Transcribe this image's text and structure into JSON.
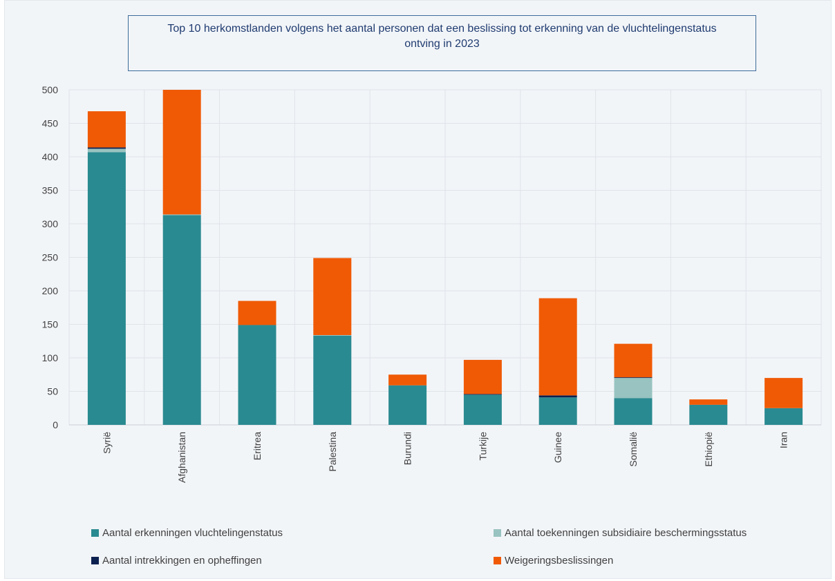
{
  "chart_data": {
    "type": "bar",
    "stacked": true,
    "title_lines": [
      "Top 10 herkomstlanden volgens het aantal personen dat een beslissing tot erkenning van de vluchtelingenstatus",
      "ontving in 2023"
    ],
    "categories": [
      "Syrië",
      "Afghanistan",
      "Eritrea",
      "Palestina",
      "Burundi",
      "Turkije",
      "Guinee",
      "Somalië",
      "Ethiopië",
      "Iran"
    ],
    "ylim": [
      0,
      500
    ],
    "yticks": [
      0,
      50,
      100,
      150,
      200,
      250,
      300,
      350,
      400,
      450,
      500
    ],
    "grid": true,
    "legend_position": "bottom",
    "series": [
      {
        "name": "Aantal erkenningen vluchtelingenstatus",
        "color": "#2a8a91",
        "values": [
          407,
          313,
          149,
          133,
          59,
          45,
          41,
          40,
          30,
          25
        ]
      },
      {
        "name": "Aantal toekenningen subsidiaire beschermingsstatus",
        "color": "#98c3c0",
        "values": [
          5,
          1,
          0,
          1,
          0,
          0,
          0,
          30,
          0,
          0
        ]
      },
      {
        "name": "Aantal intrekkingen en opheffingen",
        "color": "#0d2150",
        "values": [
          2,
          0,
          0,
          0,
          0,
          1,
          3,
          1,
          0,
          0
        ]
      },
      {
        "name": "Weigeringsbeslissingen",
        "color": "#f05a05",
        "values": [
          54,
          186,
          36,
          115,
          16,
          51,
          145,
          50,
          8,
          45
        ]
      }
    ]
  }
}
